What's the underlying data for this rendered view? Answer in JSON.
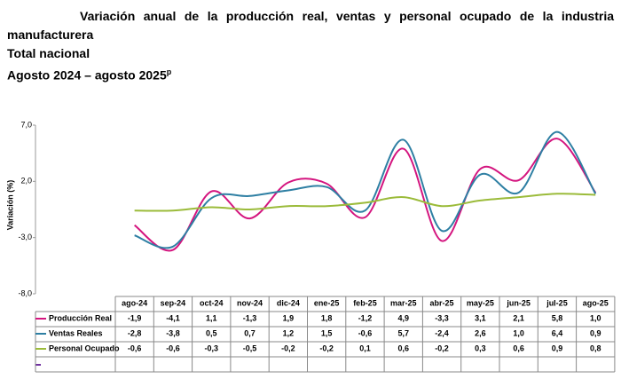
{
  "chart_data": {
    "type": "line",
    "title": "Variación anual de la producción real, ventas y personal ocupado de la industria manufacturera",
    "subtitle": "Total nacional",
    "period": "Agosto 2024 – agosto 2025",
    "period_note": "p",
    "y_label": "Variación (%)",
    "categories": [
      "ago-24",
      "sep-24",
      "oct-24",
      "nov-24",
      "dic-24",
      "ene-25",
      "feb-25",
      "mar-25",
      "abr-25",
      "may-25",
      "jun-25",
      "jul-25",
      "ago-25"
    ],
    "ylim": [
      -8,
      7
    ],
    "yticks": [
      {
        "value": 7,
        "label": "7,0"
      },
      {
        "value": 2,
        "label": "2,0"
      },
      {
        "value": -3,
        "label": "-3,0"
      },
      {
        "value": -8,
        "label": "-8,0"
      }
    ],
    "series": [
      {
        "name": "Producción Real",
        "color": "#d4157f",
        "values": [
          -1.9,
          -4.1,
          1.1,
          -1.3,
          1.9,
          1.8,
          -1.2,
          4.9,
          -3.3,
          3.1,
          2.1,
          5.8,
          1.0
        ],
        "value_labels": [
          "-1,9",
          "-4,1",
          "1,1",
          "-1,3",
          "1,9",
          "1,8",
          "-1,2",
          "4,9",
          "-3,3",
          "3,1",
          "2,1",
          "5,8",
          "1,0"
        ]
      },
      {
        "name": "Ventas Reales",
        "color": "#2e7fa3",
        "values": [
          -2.8,
          -3.8,
          0.5,
          0.7,
          1.2,
          1.5,
          -0.6,
          5.7,
          -2.4,
          2.6,
          1.0,
          6.4,
          0.9
        ],
        "value_labels": [
          "-2,8",
          "-3,8",
          "0,5",
          "0,7",
          "1,2",
          "1,5",
          "-0,6",
          "5,7",
          "-2,4",
          "2,6",
          "1,0",
          "6,4",
          "0,9"
        ]
      },
      {
        "name": "Personal Ocupado",
        "color": "#9bbb3a",
        "values": [
          -0.6,
          -0.6,
          -0.3,
          -0.5,
          -0.2,
          -0.2,
          0.1,
          0.6,
          -0.2,
          0.3,
          0.6,
          0.9,
          0.8
        ],
        "value_labels": [
          "-0,6",
          "-0,6",
          "-0,3",
          "-0,5",
          "-0,2",
          "-0,2",
          "0,1",
          "0,6",
          "-0,2",
          "0,3",
          "0,6",
          "0,9",
          "0,8"
        ]
      }
    ]
  }
}
